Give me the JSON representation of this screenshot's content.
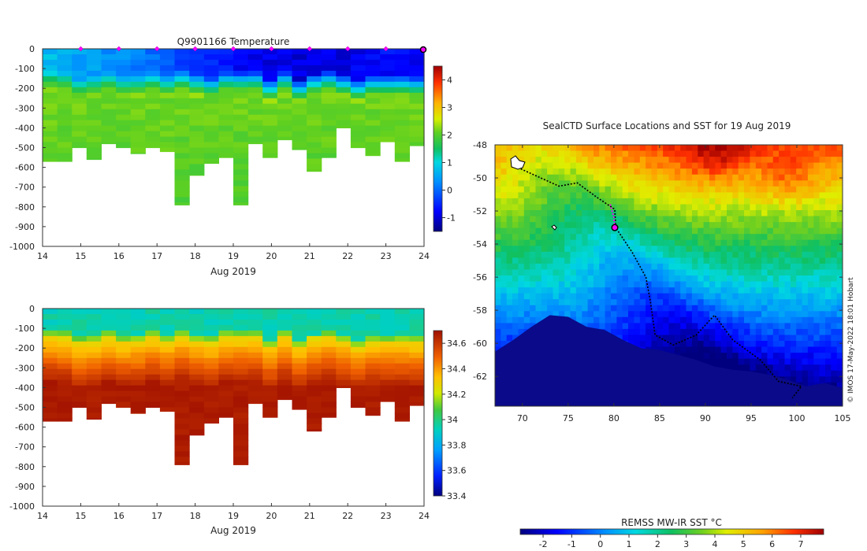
{
  "chart_data": [
    {
      "type": "heatmap",
      "title": "Q9901166  Temperature",
      "xlabel": "Aug 2019",
      "ylabel": "",
      "xlim": [
        14,
        24
      ],
      "ylim": [
        0,
        -1000
      ],
      "x_ticks": [
        "14",
        "15",
        "16",
        "17",
        "18",
        "19",
        "20",
        "21",
        "22",
        "23",
        "24"
      ],
      "y_ticks": [
        "0",
        "-100",
        "-200",
        "-300",
        "-400",
        "-500",
        "-600",
        "-700",
        "-800",
        "-900",
        "-1000"
      ],
      "colorbar": {
        "ticks": [
          "4",
          "3",
          "2",
          "1",
          "0",
          "-1"
        ],
        "range": [
          -1.5,
          4.5
        ]
      },
      "profile_max_depth": [
        -570,
        -570,
        -500,
        -560,
        -480,
        -500,
        -530,
        -500,
        -520,
        -790,
        -640,
        -580,
        -550,
        -790,
        -480,
        -550,
        -460,
        -510,
        -620,
        -550,
        -400,
        -500,
        -540,
        -470,
        -570,
        -490
      ],
      "surface_temp_day": [
        14,
        15,
        16,
        17,
        18,
        19,
        20,
        21,
        22,
        23,
        24
      ],
      "surface_temp_value": [
        0.6,
        0.3,
        0.1,
        -0.2,
        -0.6,
        -0.9,
        -1.1,
        -1.2,
        -1.1,
        -0.9,
        -1.0
      ],
      "deep_temp_value": 2.1,
      "daily_markers": [
        15,
        16,
        17,
        18,
        19,
        20,
        21,
        22,
        23
      ],
      "current_marker": 24
    },
    {
      "type": "heatmap",
      "title": "",
      "xlabel": "Aug 2019",
      "ylabel": "",
      "xlim": [
        14,
        24
      ],
      "ylim": [
        0,
        -1000
      ],
      "x_ticks": [
        "14",
        "15",
        "16",
        "17",
        "18",
        "19",
        "20",
        "21",
        "22",
        "23",
        "24"
      ],
      "y_ticks": [
        "0",
        "-100",
        "-200",
        "-300",
        "-400",
        "-500",
        "-600",
        "-700",
        "-800",
        "-900",
        "-1000"
      ],
      "colorbar": {
        "ticks": [
          "34.6",
          "34.4",
          "34.2",
          "34",
          "33.8",
          "33.6",
          "33.4"
        ],
        "range": [
          33.4,
          34.7
        ]
      },
      "surface_salinity": 33.9,
      "deep_salinity": 34.65
    },
    {
      "type": "heatmap",
      "title": "SealCTD Surface Locations and SST for 19 Aug 2019",
      "xlabel": "",
      "ylabel": "",
      "xlim": [
        67,
        105
      ],
      "ylim": [
        -63.8,
        -48
      ],
      "x_ticks": [
        "70",
        "75",
        "80",
        "85",
        "90",
        "95",
        "100",
        "105"
      ],
      "y_ticks": [
        "-48",
        "-50",
        "-52",
        "-54",
        "-56",
        "-58",
        "-60",
        "-62"
      ],
      "colorbar": {
        "label": "REMSS MW-IR SST °C",
        "ticks": [
          "-2",
          "-1",
          "0",
          "1",
          "2",
          "3",
          "4",
          "5",
          "6",
          "7"
        ],
        "range": [
          -2.8,
          7.8
        ]
      },
      "track": [
        [
          69.2,
          -49.3
        ],
        [
          72,
          -50
        ],
        [
          74,
          -50.5
        ],
        [
          76,
          -50.3
        ],
        [
          78.2,
          -51.2
        ],
        [
          80.1,
          -51.9
        ],
        [
          80.2,
          -53
        ],
        [
          82,
          -54.5
        ],
        [
          83.5,
          -56
        ],
        [
          84,
          -57.5
        ],
        [
          84.5,
          -59.5
        ],
        [
          86.5,
          -60.1
        ],
        [
          89,
          -59.5
        ],
        [
          91,
          -58.3
        ],
        [
          93,
          -59.8
        ],
        [
          96,
          -61
        ],
        [
          98,
          -62.3
        ],
        [
          100.5,
          -62.6
        ],
        [
          99.5,
          -63.3
        ]
      ],
      "track_recent": [
        [
          79.6,
          -51.6
        ],
        [
          80,
          -52.4
        ],
        [
          80.1,
          -53
        ]
      ],
      "current_position": [
        80.1,
        -53
      ],
      "credit": "© IMOS 17-May-2022 18:01 Hobart"
    }
  ]
}
